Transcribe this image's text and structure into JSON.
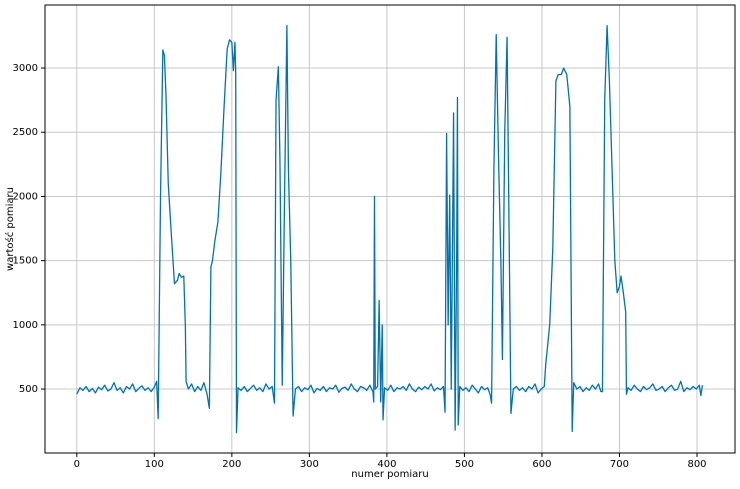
{
  "chart_data": {
    "type": "line",
    "x_label": "numer pomiaru",
    "y_label": "wartość pomiaru",
    "x": [
      0,
      4,
      8,
      12,
      16,
      20,
      24,
      28,
      32,
      36,
      40,
      44,
      48,
      52,
      56,
      60,
      64,
      68,
      72,
      76,
      80,
      84,
      88,
      92,
      96,
      100,
      103,
      105,
      108,
      111,
      113,
      115,
      118,
      122,
      126,
      130,
      132,
      135,
      138,
      140,
      141,
      144,
      148,
      152,
      156,
      160,
      164,
      168,
      171,
      173,
      175,
      178,
      182,
      186,
      190,
      194,
      197,
      200,
      202,
      204,
      205,
      206,
      208,
      212,
      216,
      220,
      224,
      228,
      232,
      236,
      240,
      244,
      248,
      252,
      255,
      257,
      260,
      262,
      265,
      268,
      271,
      273,
      276,
      279,
      282,
      286,
      290,
      294,
      298,
      302,
      306,
      310,
      314,
      318,
      322,
      326,
      330,
      334,
      338,
      342,
      346,
      350,
      354,
      358,
      362,
      366,
      370,
      374,
      378,
      382,
      383,
      384,
      385,
      388,
      390,
      392,
      394,
      395,
      397,
      401,
      405,
      409,
      413,
      417,
      421,
      425,
      429,
      433,
      437,
      441,
      445,
      449,
      453,
      457,
      461,
      465,
      469,
      473,
      475,
      477,
      479,
      481,
      483,
      486,
      488,
      490,
      491,
      492,
      494,
      498,
      502,
      506,
      510,
      514,
      518,
      522,
      526,
      530,
      533,
      535,
      538,
      541,
      544,
      547,
      549,
      552,
      555,
      558,
      560,
      563,
      567,
      571,
      575,
      579,
      583,
      587,
      591,
      595,
      599,
      603,
      605,
      610,
      614,
      618,
      621,
      625,
      628,
      632,
      636,
      639,
      641,
      645,
      649,
      653,
      657,
      661,
      665,
      669,
      673,
      676,
      678,
      681,
      684,
      687,
      690,
      694,
      697,
      700,
      702,
      705,
      708,
      709,
      711,
      715,
      719,
      723,
      727,
      731,
      735,
      739,
      743,
      747,
      751,
      755,
      759,
      763,
      767,
      771,
      775,
      779,
      783,
      787,
      791,
      795,
      799,
      803,
      805,
      807
    ],
    "values": [
      460,
      510,
      490,
      520,
      480,
      505,
      470,
      515,
      495,
      530,
      485,
      500,
      550,
      490,
      510,
      470,
      520,
      500,
      540,
      480,
      505,
      525,
      490,
      510,
      480,
      515,
      560,
      270,
      2000,
      3140,
      3100,
      2800,
      2100,
      1700,
      1320,
      1350,
      1400,
      1370,
      1380,
      1000,
      560,
      500,
      540,
      480,
      520,
      490,
      550,
      460,
      350,
      1450,
      1500,
      1650,
      1800,
      2200,
      2700,
      3150,
      3220,
      3200,
      2980,
      3200,
      2960,
      160,
      510,
      490,
      520,
      480,
      505,
      530,
      490,
      510,
      480,
      540,
      500,
      520,
      390,
      2750,
      3010,
      2300,
      530,
      2000,
      3330,
      2200,
      1500,
      290,
      500,
      520,
      480,
      510,
      495,
      530,
      470,
      505,
      490,
      520,
      480,
      510,
      500,
      530,
      475,
      505,
      515,
      490,
      540,
      500,
      480,
      520,
      510,
      490,
      530,
      480,
      400,
      2000,
      500,
      520,
      1190,
      400,
      1000,
      260,
      510,
      490,
      530,
      480,
      510,
      500,
      520,
      490,
      540,
      500,
      480,
      515,
      495,
      520,
      500,
      540,
      485,
      510,
      495,
      520,
      320,
      2490,
      1000,
      2010,
      500,
      2650,
      180,
      1550,
      2770,
      220,
      520,
      490,
      510,
      480,
      530,
      500,
      470,
      520,
      495,
      510,
      460,
      390,
      2200,
      3260,
      2300,
      1500,
      730,
      2500,
      3240,
      1500,
      310,
      500,
      520,
      490,
      510,
      480,
      520,
      500,
      540,
      470,
      500,
      520,
      700,
      1000,
      1600,
      2900,
      2950,
      2950,
      3000,
      2950,
      2700,
      170,
      550,
      500,
      520,
      480,
      510,
      490,
      530,
      500,
      540,
      480,
      480,
      2760,
      3330,
      2900,
      2300,
      1500,
      1250,
      1300,
      1380,
      1250,
      1100,
      460,
      510,
      490,
      530,
      500,
      480,
      520,
      495,
      510,
      540,
      490,
      500,
      520,
      480,
      510,
      530,
      490,
      500,
      560,
      480,
      510,
      495,
      520,
      500,
      530,
      450,
      530
    ],
    "color": "#0072b2",
    "xlim": [
      -41,
      849
    ],
    "ylim": [
      2,
      3491
    ],
    "xticks": [
      0,
      100,
      200,
      300,
      400,
      500,
      600,
      700,
      800
    ],
    "yticks": [
      500,
      1000,
      1500,
      2000,
      2500,
      3000
    ],
    "grid": true
  }
}
